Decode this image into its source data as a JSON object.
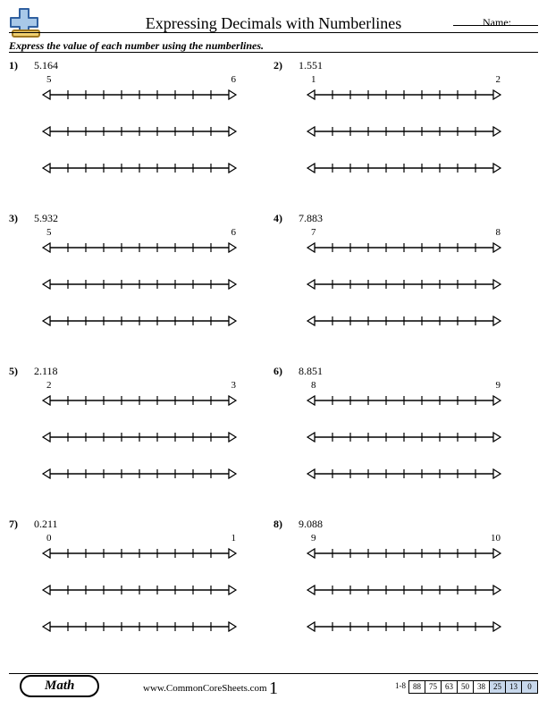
{
  "header": {
    "title": "Expressing Decimals with Numberlines",
    "name_label": "Name:"
  },
  "instructions": "Express the value of each number using the numberlines.",
  "problems": [
    {
      "num": "1)",
      "value": "5.164",
      "start": "5",
      "end": "6"
    },
    {
      "num": "2)",
      "value": "1.551",
      "start": "1",
      "end": "2"
    },
    {
      "num": "3)",
      "value": "5.932",
      "start": "5",
      "end": "6"
    },
    {
      "num": "4)",
      "value": "7.883",
      "start": "7",
      "end": "8"
    },
    {
      "num": "5)",
      "value": "2.118",
      "start": "2",
      "end": "3"
    },
    {
      "num": "6)",
      "value": "8.851",
      "start": "8",
      "end": "9"
    },
    {
      "num": "7)",
      "value": "0.211",
      "start": "0",
      "end": "1"
    },
    {
      "num": "8)",
      "value": "9.088",
      "start": "9",
      "end": "10"
    }
  ],
  "numberline": {
    "length": 220,
    "ticks": 11,
    "line_color": "#000000",
    "arrow_fill": "#ffffff",
    "tick_height": 10
  },
  "logo": {
    "plus_fill": "#a8c8e8",
    "plus_stroke": "#3060a0",
    "bar_fill": "#f0d070",
    "bar_stroke": "#a07820"
  },
  "footer": {
    "math_label": "Math",
    "site": "www.CommonCoreSheets.com",
    "page_number": "1",
    "score_label": "1-8",
    "scores": [
      {
        "v": "88",
        "bg": "#ffffff"
      },
      {
        "v": "75",
        "bg": "#ffffff"
      },
      {
        "v": "63",
        "bg": "#ffffff"
      },
      {
        "v": "50",
        "bg": "#ffffff"
      },
      {
        "v": "38",
        "bg": "#ffffff"
      },
      {
        "v": "25",
        "bg": "#c8d8ec"
      },
      {
        "v": "13",
        "bg": "#c8d8ec"
      },
      {
        "v": "0",
        "bg": "#c8d8ec"
      }
    ]
  }
}
